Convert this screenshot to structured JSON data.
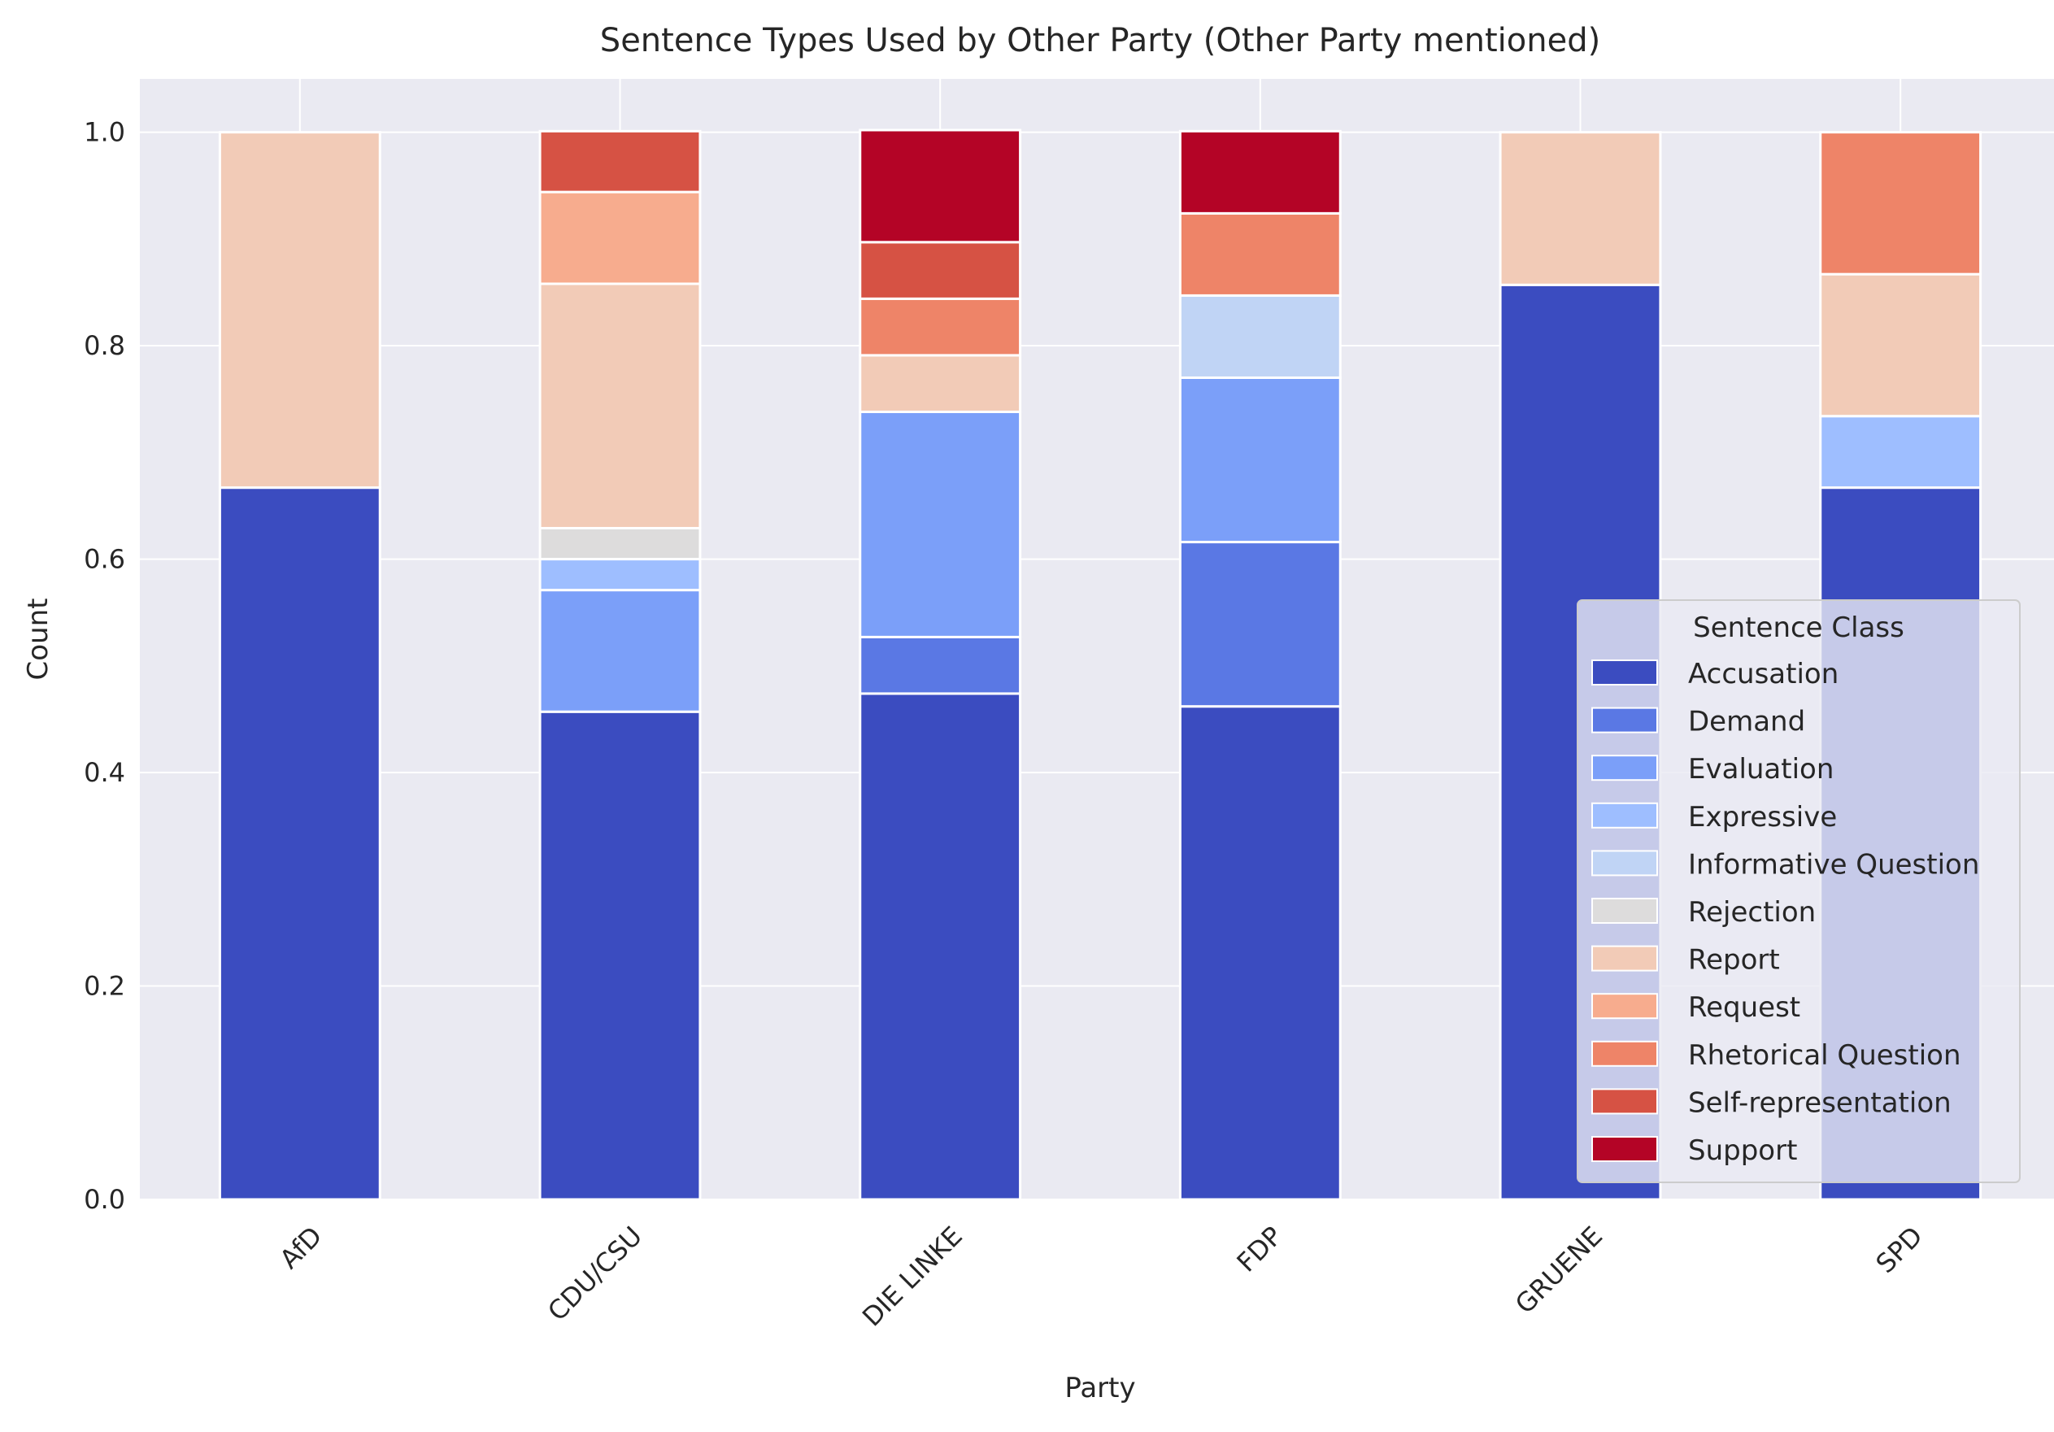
{
  "chart_data": {
    "type": "bar",
    "stacked": true,
    "title": "Sentence Types Used by Other Party (Other Party mentioned)",
    "xlabel": "Party",
    "ylabel": "Count",
    "ylim": [
      0,
      1.05
    ],
    "yticks": [
      "0.0",
      "0.2",
      "0.4",
      "0.6",
      "0.8",
      "1.0"
    ],
    "ytick_values": [
      0,
      0.2,
      0.4,
      0.6,
      0.8,
      1.0
    ],
    "grid": true,
    "legend_title": "Sentence Class",
    "legend_position": "lower-right",
    "categories": [
      "AfD",
      "CDU/CSU",
      "DIE LINKE",
      "FDP",
      "GRUENE",
      "SPD"
    ],
    "series": [
      {
        "name": "Accusation",
        "color": "#3b4cc0",
        "values": [
          0.667,
          0.457,
          0.474,
          0.462,
          0.857,
          0.667
        ]
      },
      {
        "name": "Demand",
        "color": "#5a78e4",
        "values": [
          0,
          0,
          0.053,
          0.154,
          0,
          0
        ]
      },
      {
        "name": "Evaluation",
        "color": "#7b9ff9",
        "values": [
          0,
          0.114,
          0.211,
          0.154,
          0,
          0
        ]
      },
      {
        "name": "Expressive",
        "color": "#9ebeff",
        "values": [
          0,
          0.029,
          0,
          0,
          0,
          0.067
        ]
      },
      {
        "name": "Informative Question",
        "color": "#c0d4f5",
        "values": [
          0,
          0,
          0,
          0.077,
          0,
          0
        ]
      },
      {
        "name": "Rejection",
        "color": "#dddcdc",
        "values": [
          0,
          0.029,
          0,
          0,
          0,
          0
        ]
      },
      {
        "name": "Report",
        "color": "#f2cbb7",
        "values": [
          0.333,
          0.229,
          0.053,
          0,
          0.143,
          0.133
        ]
      },
      {
        "name": "Request",
        "color": "#f7ac8e",
        "values": [
          0,
          0.086,
          0,
          0,
          0,
          0
        ]
      },
      {
        "name": "Rhetorical Question",
        "color": "#ee8468",
        "values": [
          0,
          0,
          0.053,
          0.077,
          0,
          0.133
        ]
      },
      {
        "name": "Self-representation",
        "color": "#d65244",
        "values": [
          0,
          0.057,
          0.053,
          0,
          0,
          0
        ]
      },
      {
        "name": "Support",
        "color": "#b40426",
        "values": [
          0,
          0,
          0.105,
          0.077,
          0,
          0
        ]
      }
    ]
  }
}
